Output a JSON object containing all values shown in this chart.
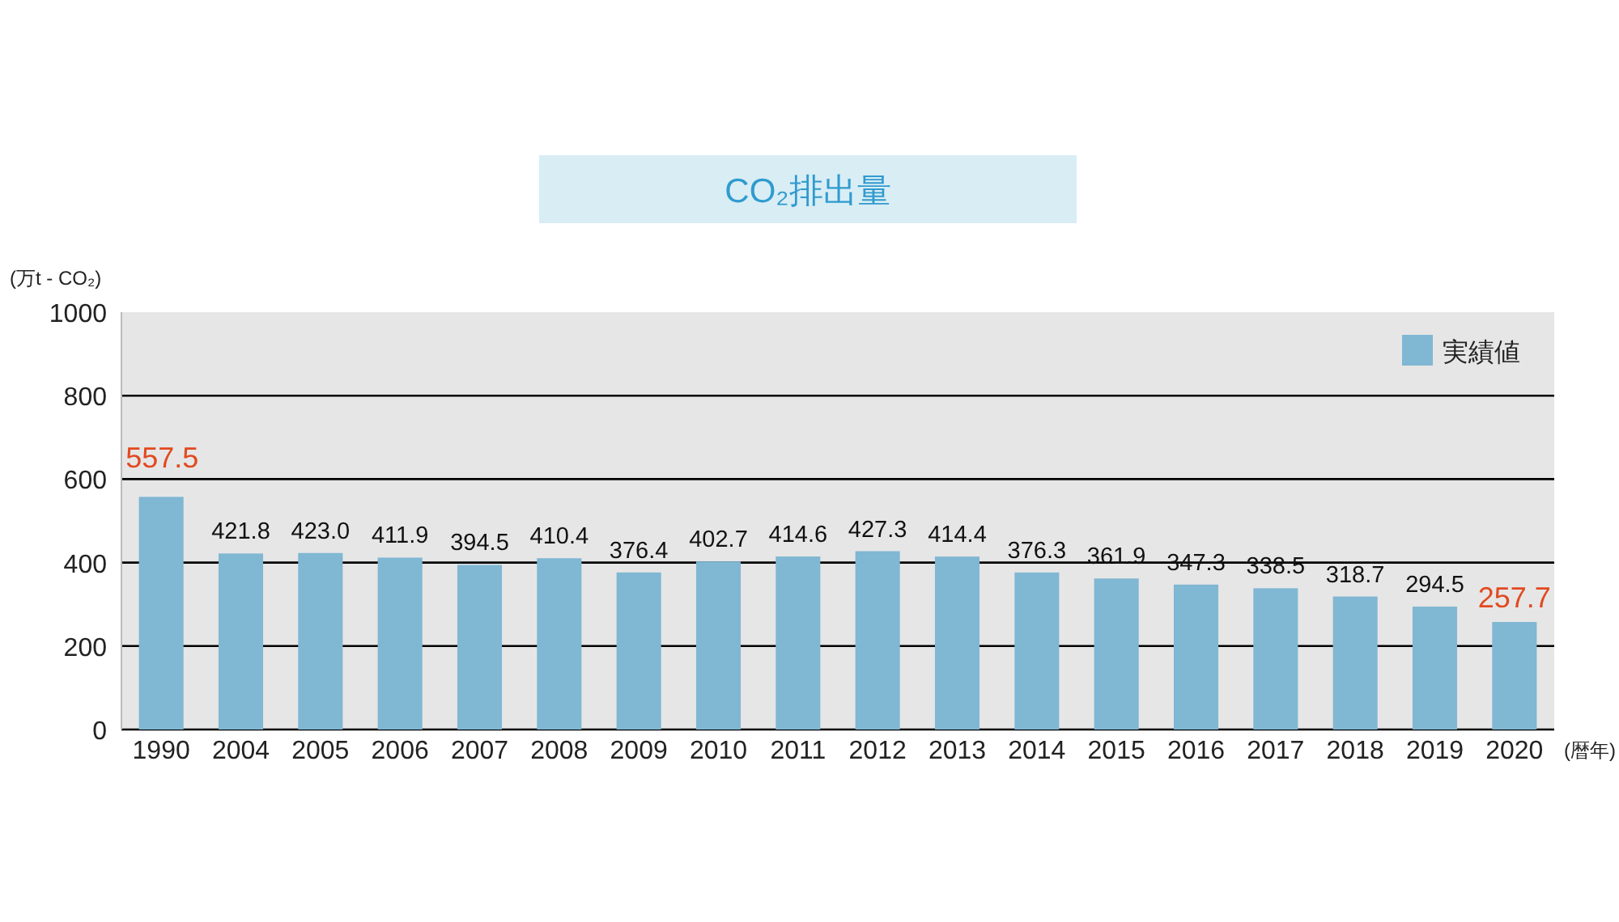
{
  "chart_data": {
    "type": "bar",
    "title": "CO₂排出量",
    "ylabel": "(万t - CO₂)",
    "xlabel": "(暦年)",
    "categories": [
      "1990",
      "2004",
      "2005",
      "2006",
      "2007",
      "2008",
      "2009",
      "2010",
      "2011",
      "2012",
      "2013",
      "2014",
      "2015",
      "2016",
      "2017",
      "2018",
      "2019",
      "2020"
    ],
    "series": [
      {
        "name": "実績値",
        "color": "#80b7d3",
        "values": [
          557.5,
          421.8,
          423.0,
          411.9,
          394.5,
          410.4,
          376.4,
          402.7,
          414.6,
          427.3,
          414.4,
          376.3,
          361.9,
          347.3,
          338.5,
          318.7,
          294.5,
          257.7
        ],
        "value_labels": [
          null,
          "421.8",
          "423.0",
          "411.9",
          "394.5",
          "410.4",
          "376.4",
          "402.7",
          "414.6",
          "427.3",
          "414.4",
          "376.3",
          "361.9",
          "347.3",
          "338.5",
          "318.7",
          "294.5",
          null
        ]
      }
    ],
    "annotations": [
      {
        "text": "557.5",
        "x": "1990",
        "y": 557.5
      },
      {
        "text": "257.7",
        "x": "2020",
        "y": 257.7
      }
    ],
    "ylim": [
      0,
      1000
    ],
    "yticks": [
      0,
      200,
      400,
      600,
      800,
      1000
    ],
    "grid": "y",
    "legend": "top right"
  }
}
